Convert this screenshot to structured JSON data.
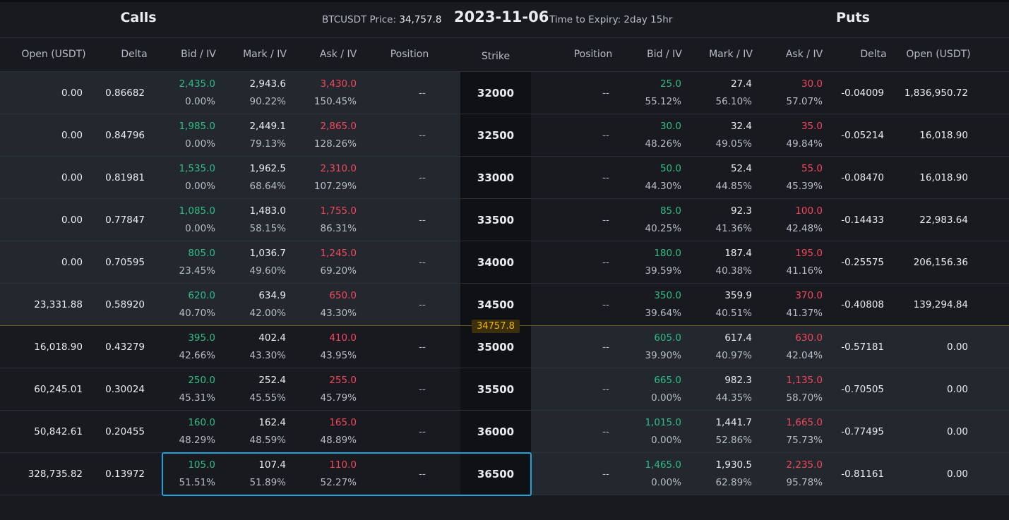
{
  "header": {
    "calls": "Calls",
    "price_label": "BTCUSDT Price:",
    "price": "34,757.8",
    "date": "2023-11-06",
    "expiry": "Time to Expiry: 2day 15hr",
    "puts": "Puts"
  },
  "columns": {
    "calls": [
      "Open (USDT)",
      "Delta",
      "Bid / IV",
      "Mark / IV",
      "Ask / IV",
      "Position"
    ],
    "strike": "Strike",
    "puts": [
      "Position",
      "Bid / IV",
      "Mark / IV",
      "Ask / IV",
      "Delta",
      "Open (USDT)"
    ]
  },
  "index_marker": "34757.8",
  "rows": [
    {
      "strike": "32000",
      "call": [
        "0.00",
        "0.86682",
        "2,435.0",
        "0.00%",
        "2,943.6",
        "90.22%",
        "3,430.0",
        "150.45%",
        "--"
      ],
      "put": [
        "--",
        "25.0",
        "55.12%",
        "27.4",
        "56.10%",
        "30.0",
        "57.07%",
        "-0.04009",
        "1,836,950.72"
      ]
    },
    {
      "strike": "32500",
      "call": [
        "0.00",
        "0.84796",
        "1,985.0",
        "0.00%",
        "2,449.1",
        "79.13%",
        "2,865.0",
        "128.26%",
        "--"
      ],
      "put": [
        "--",
        "30.0",
        "48.26%",
        "32.4",
        "49.05%",
        "35.0",
        "49.84%",
        "-0.05214",
        "16,018.90"
      ]
    },
    {
      "strike": "33000",
      "call": [
        "0.00",
        "0.81981",
        "1,535.0",
        "0.00%",
        "1,962.5",
        "68.64%",
        "2,310.0",
        "107.29%",
        "--"
      ],
      "put": [
        "--",
        "50.0",
        "44.30%",
        "52.4",
        "44.85%",
        "55.0",
        "45.39%",
        "-0.08470",
        "16,018.90"
      ]
    },
    {
      "strike": "33500",
      "call": [
        "0.00",
        "0.77847",
        "1,085.0",
        "0.00%",
        "1,483.0",
        "58.15%",
        "1,755.0",
        "86.31%",
        "--"
      ],
      "put": [
        "--",
        "85.0",
        "40.25%",
        "92.3",
        "41.36%",
        "100.0",
        "42.48%",
        "-0.14433",
        "22,983.64"
      ]
    },
    {
      "strike": "34000",
      "call": [
        "0.00",
        "0.70595",
        "805.0",
        "23.45%",
        "1,036.7",
        "49.60%",
        "1,245.0",
        "69.20%",
        "--"
      ],
      "put": [
        "--",
        "180.0",
        "39.59%",
        "187.4",
        "40.38%",
        "195.0",
        "41.16%",
        "-0.25575",
        "206,156.36"
      ]
    },
    {
      "strike": "34500",
      "call": [
        "23,331.88",
        "0.58920",
        "620.0",
        "40.70%",
        "634.9",
        "42.00%",
        "650.0",
        "43.30%",
        "--"
      ],
      "put": [
        "--",
        "350.0",
        "39.64%",
        "359.9",
        "40.51%",
        "370.0",
        "41.37%",
        "-0.40808",
        "139,294.84"
      ]
    },
    {
      "strike": "35000",
      "call": [
        "16,018.90",
        "0.43279",
        "395.0",
        "42.66%",
        "402.4",
        "43.30%",
        "410.0",
        "43.95%",
        "--"
      ],
      "put": [
        "--",
        "605.0",
        "39.90%",
        "617.4",
        "40.97%",
        "630.0",
        "42.04%",
        "-0.57181",
        "0.00"
      ]
    },
    {
      "strike": "35500",
      "call": [
        "60,245.01",
        "0.30024",
        "250.0",
        "45.31%",
        "252.4",
        "45.55%",
        "255.0",
        "45.79%",
        "--"
      ],
      "put": [
        "--",
        "665.0",
        "0.00%",
        "982.3",
        "44.35%",
        "1,135.0",
        "58.70%",
        "-0.70505",
        "0.00"
      ]
    },
    {
      "strike": "36000",
      "call": [
        "50,842.61",
        "0.20455",
        "160.0",
        "48.29%",
        "162.4",
        "48.59%",
        "165.0",
        "48.89%",
        "--"
      ],
      "put": [
        "--",
        "1,015.0",
        "0.00%",
        "1,441.7",
        "52.86%",
        "1,665.0",
        "75.73%",
        "-0.77495",
        "0.00"
      ]
    },
    {
      "strike": "36500",
      "call": [
        "328,735.82",
        "0.13972",
        "105.0",
        "51.51%",
        "107.4",
        "51.89%",
        "110.0",
        "52.27%",
        "--"
      ],
      "put": [
        "--",
        "1,465.0",
        "0.00%",
        "1,930.5",
        "62.89%",
        "2,235.0",
        "95.78%",
        "-0.81161",
        "0.00"
      ]
    }
  ]
}
